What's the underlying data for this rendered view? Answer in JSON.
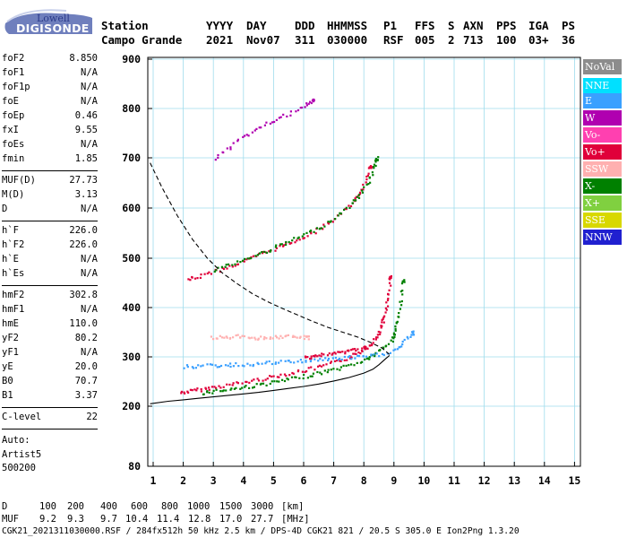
{
  "logo": {
    "brand": "Lowell",
    "name": "DIGISONDE"
  },
  "header": {
    "labels": [
      "Station",
      "YYYY",
      "DAY",
      "DDD",
      "HHMMSS",
      "P1",
      "FFS",
      "S",
      "AXN",
      "PPS",
      "IGA",
      "PS"
    ],
    "values": [
      "Campo Grande",
      "2021",
      "Nov07",
      "311",
      "030000",
      "RSF",
      "005",
      "2",
      "713",
      "100",
      "03+",
      "36"
    ]
  },
  "params_group1": [
    {
      "k": "foF2",
      "v": "8.850"
    },
    {
      "k": "foF1",
      "v": "N/A"
    },
    {
      "k": "foF1p",
      "v": "N/A"
    },
    {
      "k": "foE",
      "v": "N/A"
    },
    {
      "k": "foEp",
      "v": "0.46"
    },
    {
      "k": "fxI",
      "v": "9.55"
    },
    {
      "k": "foEs",
      "v": "N/A"
    },
    {
      "k": "fmin",
      "v": "1.85"
    }
  ],
  "params_group2": [
    {
      "k": "MUF(D)",
      "v": "27.73"
    },
    {
      "k": "M(D)",
      "v": "3.13"
    },
    {
      "k": "D",
      "v": "N/A"
    }
  ],
  "params_group3": [
    {
      "k": "h`F",
      "v": "226.0"
    },
    {
      "k": "h`F2",
      "v": "226.0"
    },
    {
      "k": "h`E",
      "v": "N/A"
    },
    {
      "k": "h`Es",
      "v": "N/A"
    }
  ],
  "params_group4": [
    {
      "k": "hmF2",
      "v": "302.8"
    },
    {
      "k": "hmF1",
      "v": "N/A"
    },
    {
      "k": "hmE",
      "v": "110.0"
    },
    {
      "k": "yF2",
      "v": "80.2"
    },
    {
      "k": "yF1",
      "v": "N/A"
    },
    {
      "k": "yE",
      "v": "20.0"
    },
    {
      "k": "B0",
      "v": "70.7"
    },
    {
      "k": "B1",
      "v": "3.37"
    }
  ],
  "params_group5": [
    {
      "k": "C-level",
      "v": "22"
    }
  ],
  "autoscaling": {
    "label": "Auto:",
    "program": "Artist5",
    "version": "500200"
  },
  "legend": [
    {
      "label": "NoVal",
      "color": "#8c8c8c"
    },
    {
      "label": "NNE",
      "color": "#00e0ff"
    },
    {
      "label": "E",
      "color": "#3aa0ff"
    },
    {
      "label": "W",
      "color": "#b000b0"
    },
    {
      "label": "Vo-",
      "color": "#ff40b0"
    },
    {
      "label": "Vo+",
      "color": "#e0003a"
    },
    {
      "label": "SSW",
      "color": "#ffb0b0"
    },
    {
      "label": "X-",
      "color": "#008000"
    },
    {
      "label": "X+",
      "color": "#80d040"
    },
    {
      "label": "SSE",
      "color": "#d8d800"
    },
    {
      "label": "NNW",
      "color": "#2020d0"
    }
  ],
  "chart_data": {
    "type": "scatter",
    "title": "",
    "xlabel": "",
    "ylabel": "",
    "xlim": [
      0.9,
      15.2
    ],
    "ylim": [
      80,
      900
    ],
    "x_ticks": [
      "1",
      "2",
      "3",
      "4",
      "5",
      "6",
      "7",
      "8",
      "9",
      "10",
      "11",
      "12",
      "13",
      "14",
      "15"
    ],
    "y_ticks": [
      "900",
      "800",
      "700",
      "600",
      "500",
      "400",
      "300",
      "200",
      "80"
    ],
    "grid": true,
    "series": [
      {
        "legend": "Vo+",
        "color": "#e0003a",
        "x": [
          1.9,
          2.2,
          2.6,
          3.0,
          3.5,
          4.0,
          4.5,
          5.0,
          5.5,
          6.0,
          6.5,
          7.0,
          7.5,
          7.8,
          8.1,
          8.3,
          8.5,
          8.6,
          8.7,
          8.8,
          8.85
        ],
        "y": [
          229,
          232,
          236,
          240,
          245,
          250,
          256,
          262,
          268,
          274,
          281,
          290,
          300,
          310,
          322,
          335,
          352,
          372,
          395,
          425,
          462
        ]
      },
      {
        "legend": "X-",
        "color": "#008000",
        "x": [
          2.6,
          3.0,
          3.5,
          4.0,
          4.5,
          5.0,
          5.5,
          6.0,
          6.5,
          7.0,
          7.5,
          8.0,
          8.3,
          8.6,
          8.9,
          9.0,
          9.1,
          9.2,
          9.3
        ],
        "y": [
          229,
          232,
          236,
          240,
          245,
          250,
          256,
          262,
          269,
          276,
          284,
          295,
          305,
          318,
          335,
          352,
          375,
          410,
          455
        ]
      },
      {
        "legend": "Vo+",
        "color": "#e0003a",
        "x": [
          2.1,
          2.5,
          3.0,
          3.5,
          4.0,
          4.5,
          5.0,
          5.5,
          6.0,
          6.5,
          7.0,
          7.5,
          7.8,
          8.0,
          8.2
        ],
        "y": [
          458,
          465,
          475,
          485,
          495,
          508,
          520,
          532,
          545,
          560,
          580,
          605,
          625,
          650,
          685
        ]
      },
      {
        "legend": "X-",
        "color": "#008000",
        "x": [
          3.0,
          3.5,
          4.0,
          4.5,
          5.0,
          5.5,
          6.0,
          6.5,
          7.0,
          7.5,
          7.8,
          8.1,
          8.3,
          8.4
        ],
        "y": [
          478,
          488,
          498,
          510,
          522,
          535,
          548,
          562,
          582,
          605,
          625,
          650,
          680,
          700
        ]
      },
      {
        "legend": "E",
        "color": "#3aa0ff",
        "x": [
          2.0,
          2.5,
          3.0,
          3.5,
          4.0,
          4.5,
          5.0,
          5.5,
          6.0,
          6.5,
          7.0,
          7.5,
          8.0,
          8.5,
          9.0,
          9.3,
          9.6
        ],
        "y": [
          282,
          283,
          284,
          285,
          286,
          288,
          290,
          292,
          294,
          296,
          298,
          300,
          302,
          306,
          315,
          330,
          350
        ]
      },
      {
        "legend": "SSW",
        "color": "#ffb0b0",
        "x": [
          2.9,
          3.3,
          3.7,
          4.1,
          4.5,
          4.9,
          5.3,
          5.7,
          6.1
        ],
        "y": [
          340,
          341,
          343,
          342,
          340,
          341,
          343,
          342,
          341
        ]
      },
      {
        "legend": "W",
        "color": "#b000b0",
        "x": [
          3.0,
          3.5,
          4.0,
          4.5,
          5.0,
          5.5,
          6.0,
          6.3
        ],
        "y": [
          700,
          722,
          744,
          762,
          778,
          790,
          805,
          818
        ]
      },
      {
        "legend": "Vo+",
        "color": "#e0003a",
        "x": [
          6.0,
          6.3,
          6.6,
          7.0,
          7.3,
          7.6,
          8.0
        ],
        "y": [
          300,
          303,
          306,
          308,
          312,
          316,
          320
        ]
      }
    ],
    "curves": [
      {
        "name": "MUF curve (dashed)",
        "x": [
          0.9,
          1.3,
          1.8,
          2.3,
          2.8,
          3.3,
          3.8,
          4.3,
          4.8,
          5.3,
          5.8,
          6.3,
          6.8,
          7.3,
          7.8,
          8.2,
          8.6,
          8.85
        ],
        "y": [
          690,
          640,
          585,
          538,
          500,
          470,
          448,
          428,
          412,
          398,
          385,
          372,
          360,
          350,
          340,
          330,
          318,
          305
        ]
      },
      {
        "name": "true height profile (solid)",
        "x": [
          0.9,
          1.5,
          2.0,
          2.5,
          3.0,
          3.5,
          4.0,
          4.5,
          5.0,
          5.5,
          6.0,
          6.5,
          7.0,
          7.5,
          8.0,
          8.3,
          8.5,
          8.7,
          8.85
        ],
        "y": [
          205,
          210,
          213,
          216,
          219,
          222,
          225,
          228,
          232,
          236,
          240,
          245,
          251,
          258,
          267,
          275,
          284,
          295,
          303
        ]
      }
    ]
  },
  "footer": {
    "d_label": "D",
    "d_values": [
      "100",
      "200",
      "400",
      "600",
      "800",
      "1000",
      "1500",
      "3000",
      "[km]"
    ],
    "muf_label": "MUF",
    "muf_values": [
      "9.2",
      "9.3",
      "9.7",
      "10.4",
      "11.4",
      "12.8",
      "17.0",
      "27.7",
      "[MHz]"
    ],
    "file_info": "CGK21_2021311030000.RSF / 284fx512h 50 kHz 2.5 km / DPS-4D CGK21 821 / 20.5 S 305.0 E Ion2Png 1.3.20"
  }
}
